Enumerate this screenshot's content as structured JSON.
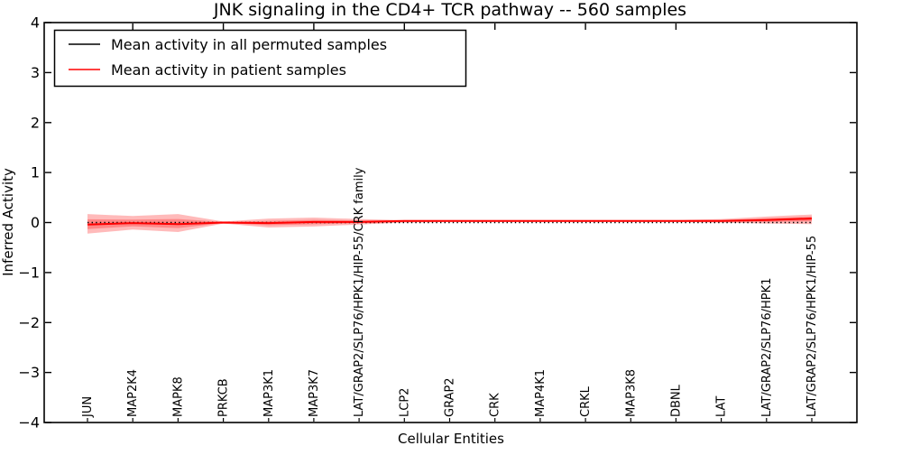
{
  "title": "JNK signaling in the CD4+ TCR pathway -- 560 samples",
  "axes": {
    "ylabel": "Inferred Activity",
    "xlabel": "Cellular Entities",
    "ytick_labels": [
      "4",
      "3",
      "2",
      "1",
      "0",
      "−1",
      "−2",
      "−3",
      "−4"
    ]
  },
  "legend": {
    "items": [
      {
        "label": "Mean activity in all permuted samples",
        "color": "#000000"
      },
      {
        "label": "Mean activity in patient samples",
        "color": "#ff0000"
      }
    ]
  },
  "colors": {
    "patient_line": "#ff0000",
    "permuted_line": "#000000",
    "band_fill": "#ff0000",
    "frame": "#000000"
  },
  "chart_data": {
    "type": "line",
    "title": "JNK signaling in the CD4+ TCR pathway -- 560 samples",
    "xlabel": "Cellular Entities",
    "ylabel": "Inferred Activity",
    "ylim": [
      -4,
      4
    ],
    "yticks": [
      4,
      3,
      2,
      1,
      0,
      -1,
      -2,
      -3,
      -4
    ],
    "grid": false,
    "legend_position": "upper left",
    "categories": [
      "JUN",
      "MAP2K4",
      "MAPK8",
      "PRKCB",
      "MAP3K1",
      "MAP3K7",
      "LAT/GRAP2/SLP76/HPK1/HIP-55/CRK family",
      "LCP2",
      "GRAP2",
      "CRK",
      "MAP4K1",
      "CRKL",
      "MAP3K8",
      "DBNL",
      "LAT",
      "LAT/GRAP2/SLP76/HPK1",
      "LAT/GRAP2/SLP76/HPK1/HIP-55"
    ],
    "series": [
      {
        "name": "Mean activity in all permuted samples",
        "color": "#000000",
        "style": "dotted",
        "values": [
          0,
          0,
          0,
          0,
          0,
          0,
          0,
          0,
          0,
          0,
          0,
          0,
          0,
          0,
          0,
          0,
          0
        ]
      },
      {
        "name": "Mean activity in patient samples",
        "color": "#ff0000",
        "style": "solid",
        "values": [
          -0.04,
          -0.01,
          -0.03,
          0.0,
          -0.01,
          0.01,
          0.01,
          0.03,
          0.03,
          0.03,
          0.03,
          0.03,
          0.03,
          0.03,
          0.03,
          0.05,
          0.08
        ]
      }
    ],
    "patient_band": {
      "upper": [
        0.17,
        0.13,
        0.17,
        0.02,
        0.08,
        0.1,
        0.07,
        0.05,
        0.05,
        0.05,
        0.05,
        0.05,
        0.05,
        0.05,
        0.07,
        0.12,
        0.16
      ],
      "lower": [
        -0.22,
        -0.14,
        -0.19,
        -0.02,
        -0.1,
        -0.08,
        -0.04,
        0.0,
        0.01,
        0.01,
        0.01,
        0.01,
        0.01,
        0.01,
        0.0,
        -0.02,
        -0.03
      ],
      "fill_opacity": 0.27
    }
  }
}
